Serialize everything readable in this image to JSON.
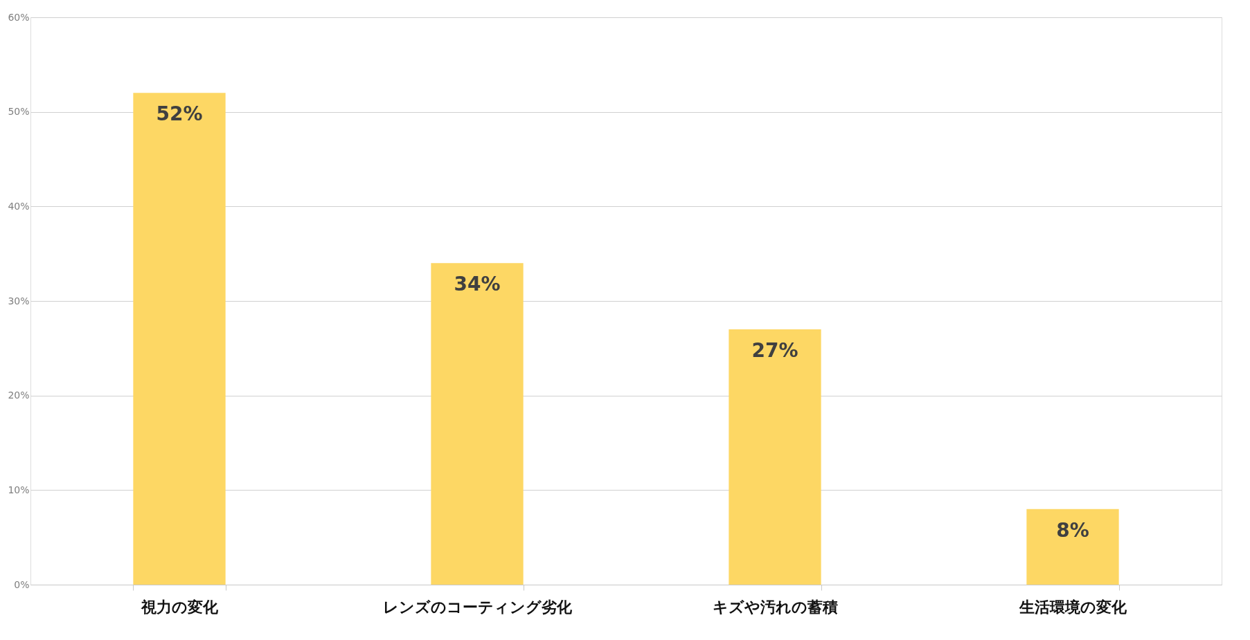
{
  "chart_data": {
    "type": "bar",
    "categories": [
      "視力の変化",
      "レンズのコーティング劣化",
      "キズや汚れの蓄積",
      "生活環境の変化"
    ],
    "values": [
      52,
      34,
      27,
      8
    ],
    "value_labels": [
      "52%",
      "34%",
      "27%",
      "8%"
    ],
    "color": "#fdd764",
    "ylim": [
      0,
      60
    ],
    "yticks": [
      {
        "value": 0,
        "label": "0%"
      },
      {
        "value": 10,
        "label": "10%"
      },
      {
        "value": 20,
        "label": "20%"
      },
      {
        "value": 30,
        "label": "30%"
      },
      {
        "value": 40,
        "label": "40%"
      },
      {
        "value": 50,
        "label": "50%"
      },
      {
        "value": 60,
        "label": "60%"
      }
    ],
    "grid": "y"
  }
}
